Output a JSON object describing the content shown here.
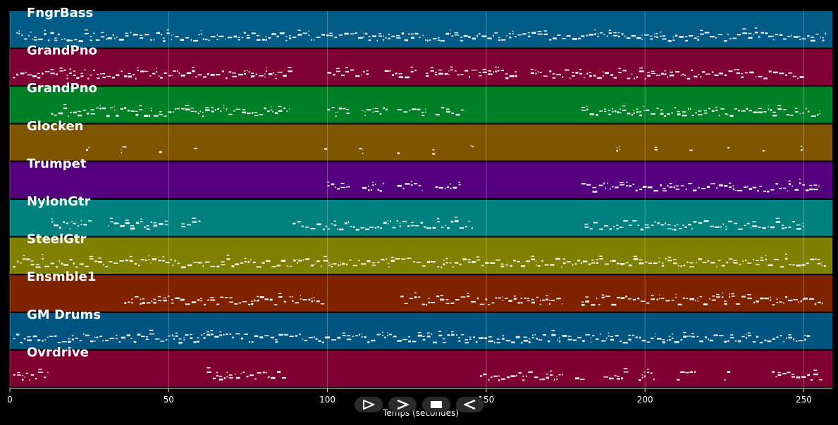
{
  "chart_data": {
    "type": "timeline",
    "xlabel": "Temps (secondes)",
    "xlim": [
      0,
      259
    ],
    "xticks": [
      0,
      50,
      100,
      150,
      200,
      250
    ],
    "grid": "vertical",
    "tracks": [
      {
        "name": "FngrBass",
        "color": "#005b86",
        "segments": [
          [
            2,
            257
          ]
        ]
      },
      {
        "name": "GrandPno",
        "color": "#7f0034",
        "segments": [
          [
            1,
            89
          ],
          [
            100,
            113
          ],
          [
            118,
            128
          ],
          [
            131,
            160
          ],
          [
            164,
            250
          ]
        ]
      },
      {
        "name": "GrandPno",
        "color": "#008026",
        "segments": [
          [
            13,
            88
          ],
          [
            100,
            107
          ],
          [
            111,
            119
          ],
          [
            122,
            131
          ],
          [
            134,
            143
          ],
          [
            180,
            255
          ]
        ]
      },
      {
        "name": "Glocken",
        "color": "#7f5500",
        "segments": [
          [
            24,
            25
          ],
          [
            35,
            37
          ],
          [
            47,
            48
          ],
          [
            58,
            59
          ],
          [
            99,
            100
          ],
          [
            110,
            111
          ],
          [
            122,
            123
          ],
          [
            133,
            134
          ],
          [
            145,
            146
          ],
          [
            191,
            192
          ],
          [
            203,
            204
          ],
          [
            214,
            215
          ],
          [
            226,
            227
          ],
          [
            237,
            238
          ],
          [
            249,
            250
          ]
        ]
      },
      {
        "name": "Trumpet",
        "color": "#55007f",
        "segments": [
          [
            100,
            107
          ],
          [
            111,
            118
          ],
          [
            122,
            130
          ],
          [
            134,
            142
          ],
          [
            180,
            255
          ]
        ]
      },
      {
        "name": "NylonGtr",
        "color": "#00807f",
        "segments": [
          [
            13,
            26
          ],
          [
            31,
            50
          ],
          [
            54,
            60
          ],
          [
            89,
            146
          ],
          [
            181,
            250
          ]
        ]
      },
      {
        "name": "SteelGtr",
        "color": "#7f8000",
        "segments": [
          [
            1,
            257
          ]
        ]
      },
      {
        "name": "Ensmble1",
        "color": "#7f2200",
        "segments": [
          [
            36,
            87
          ],
          [
            88,
            99
          ],
          [
            123,
            174
          ],
          [
            180,
            250
          ],
          [
            250,
            256
          ]
        ]
      },
      {
        "name": "GM Drums",
        "color": "#005480",
        "segments": [
          [
            1,
            252
          ]
        ]
      },
      {
        "name": "Ovrdrive",
        "color": "#7f0030",
        "segments": [
          [
            1,
            12
          ],
          [
            62,
            87
          ],
          [
            148,
            174
          ],
          [
            178,
            181
          ],
          [
            187,
            195
          ],
          [
            198,
            203
          ],
          [
            210,
            216
          ],
          [
            225,
            227
          ],
          [
            240,
            256
          ]
        ]
      }
    ]
  },
  "controls": {
    "play_icon": "play-icon",
    "forward_icon": "forward-icon",
    "stop_icon": "stop-icon",
    "rewind_icon": "rewind-icon"
  }
}
